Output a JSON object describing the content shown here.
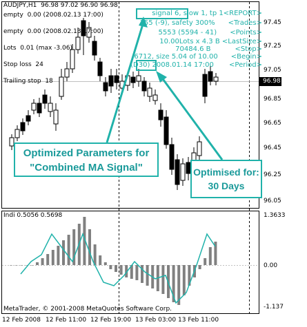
{
  "main_chart": {
    "title": "AUDJPY,H1  96.98 97.02 96.90 96.98",
    "info_lines": [
      "empty  0.00 (2008.02.13 17:00)",
      "empty  0.00 (2008.02.13 17:00)",
      "Lots  0.01 (max -3.06)",
      "Stop loss  24",
      "Trailing stop  18"
    ],
    "report_lines": [
      "signal 6, slow 1, tp 1<REPORT>",
      "155 (-9), safety 300%      <Trades>",
      "5553 (5594 - 41)      <Points>",
      "10.00Lots x 4.3 B <LastSize>",
      "70484.6 B           <Stop>",
      "6712, size 5.04 of 10.00      <Begin>",
      "(D30) 2008.01.14 17:00       <Period>"
    ],
    "price_labels": [
      "97.45",
      "97.25",
      "97.05",
      "96.85",
      "96.65",
      "96.45",
      "96.25",
      "96.05"
    ],
    "current_price": "96.98"
  },
  "callouts": {
    "optimized_params": "Optimized Parameters for \"Combined MA Signal\"",
    "optimised_for": "Optimised for: 30 Days"
  },
  "indicator": {
    "title": "Indi 0.5056 0.5698",
    "scale_labels": [
      "1.3633",
      "0.00",
      "-1.137"
    ],
    "copyright": "MetaTrader, © 2001-2008 MetaQuotes Software Corp."
  },
  "time_axis": [
    "12 Feb 2008",
    "12 Feb 11:00",
    "12 Feb 19:00",
    "13 Feb 03:00",
    "13 Feb 11:00"
  ],
  "colors": {
    "accent": "#20b2aa",
    "histogram": "#808080",
    "grid": "#000000",
    "background": "#ffffff"
  }
}
